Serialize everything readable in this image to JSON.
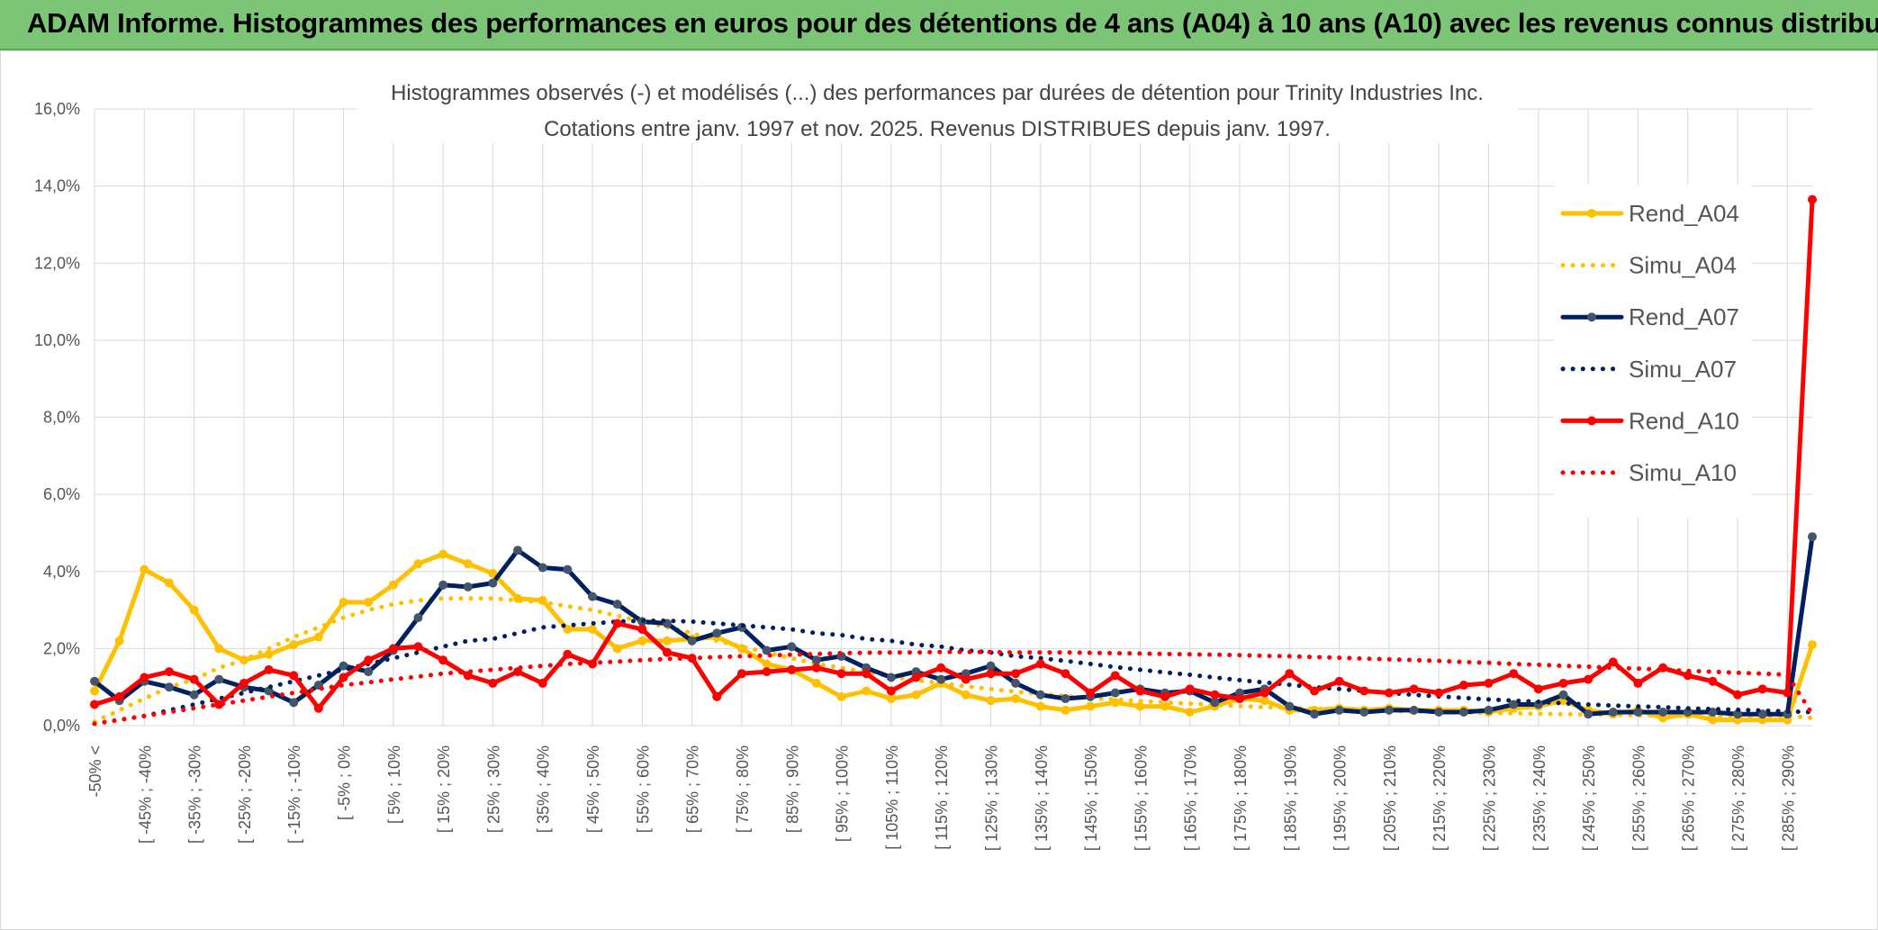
{
  "header": {
    "title": "ADAM Informe. Histogrammes des performances en euros pour des détentions de 4 ans (A04) à 10 ans (A10) avec les revenus connus distribués"
  },
  "colors": {
    "header_bg": "#7cc576",
    "A04": "#ffc000",
    "A07": "#002060",
    "A10": "#ff0000",
    "grid": "#d9d9d9"
  },
  "chart_data": {
    "type": "line",
    "title": "Histogrammes observés (-) et modélisés (...) des performances par durées de détention pour Trinity Industries Inc.",
    "subtitle": "Cotations entre janv. 1997 et nov. 2025. Revenus DISTRIBUES depuis janv. 1997.",
    "ylim": [
      0,
      0.16
    ],
    "yticks": [
      "0,0%",
      "2,0%",
      "4,0%",
      "6,0%",
      "8,0%",
      "10,0%",
      "12,0%",
      "14,0%",
      "16,0%"
    ],
    "grid": true,
    "legend_position": "top-right",
    "x_labels": [
      "-50% <",
      "[ -45% ; -40%",
      "[ -35% ; -30%",
      "[ -25% ; -20%",
      "[ -15% ; -10%",
      "[ -5% ; 0%",
      "[ 5% ; 10%",
      "[ 15% ; 20%",
      "[ 25% ; 30%",
      "[ 35% ; 40%",
      "[ 45% ; 50%",
      "[ 55% ; 60%",
      "[ 65% ; 70%",
      "[ 75% ; 80%",
      "[ 85% ; 90%",
      "[ 95% ; 100%",
      "[ 105% ; 110%",
      "[ 115% ; 120%",
      "[ 125% ; 130%",
      "[ 135% ; 140%",
      "[ 145% ; 150%",
      "[ 155% ; 160%",
      "[ 165% ; 170%",
      "[ 175% ; 180%",
      "[ 185% ; 190%",
      "[ 195% ; 200%",
      "[ 205% ; 210%",
      "[ 215% ; 220%",
      "[ 225% ; 230%",
      "[ 235% ; 240%",
      "[ 245% ; 250%",
      "[ 255% ; 260%",
      "[ 265% ; 270%",
      "[ 275% ; 280%",
      "[ 285% ; 290%"
    ],
    "series": [
      {
        "name": "Rend_A04",
        "style": "solid",
        "color": "#ffc000",
        "values": [
          0.009,
          0.022,
          0.0405,
          0.037,
          0.03,
          0.02,
          0.017,
          0.0185,
          0.021,
          0.023,
          0.032,
          0.032,
          0.0365,
          0.042,
          0.0445,
          0.042,
          0.0395,
          0.033,
          0.0325,
          0.025,
          0.025,
          0.02,
          0.022,
          0.022,
          0.0225,
          0.023,
          0.02,
          0.016,
          0.0145,
          0.011,
          0.0075,
          0.009,
          0.007,
          0.008,
          0.011,
          0.008,
          0.0065,
          0.007,
          0.005,
          0.004,
          0.005,
          0.006,
          0.005,
          0.005,
          0.0035,
          0.005,
          0.007,
          0.0065,
          0.004,
          0.004,
          0.0045,
          0.004,
          0.0045,
          0.004,
          0.004,
          0.004,
          0.0035,
          0.0045,
          0.005,
          0.0065,
          0.004,
          0.003,
          0.004,
          0.002,
          0.003,
          0.0015,
          0.0015,
          0.0015,
          0.0015,
          0.021
        ]
      },
      {
        "name": "Simu_A04",
        "style": "dotted",
        "color": "#ffc000",
        "values": [
          0.001,
          0.004,
          0.007,
          0.01,
          0.012,
          0.015,
          0.017,
          0.02,
          0.023,
          0.0255,
          0.028,
          0.03,
          0.0315,
          0.0325,
          0.033,
          0.033,
          0.033,
          0.0325,
          0.032,
          0.031,
          0.03,
          0.0285,
          0.027,
          0.0255,
          0.024,
          0.022,
          0.0205,
          0.019,
          0.0175,
          0.016,
          0.015,
          0.0138,
          0.0128,
          0.0118,
          0.011,
          0.0102,
          0.0095,
          0.0088,
          0.0082,
          0.0077,
          0.0072,
          0.0068,
          0.0064,
          0.006,
          0.0057,
          0.0054,
          0.0051,
          0.0048,
          0.0046,
          0.0044,
          0.0042,
          0.004,
          0.0038,
          0.0036,
          0.0035,
          0.0034,
          0.0033,
          0.0032,
          0.0031,
          0.003,
          0.0029,
          0.0028,
          0.0027,
          0.0026,
          0.0025,
          0.0025,
          0.0025,
          0.0025,
          0.0025,
          0.002
        ]
      },
      {
        "name": "Rend_A07",
        "style": "solid",
        "color": "#002060",
        "values": [
          0.0115,
          0.0065,
          0.0115,
          0.01,
          0.008,
          0.012,
          0.01,
          0.009,
          0.006,
          0.0105,
          0.0155,
          0.014,
          0.0195,
          0.028,
          0.0365,
          0.036,
          0.037,
          0.0455,
          0.041,
          0.0405,
          0.0335,
          0.0315,
          0.027,
          0.0265,
          0.022,
          0.024,
          0.0255,
          0.0195,
          0.0205,
          0.017,
          0.018,
          0.015,
          0.0125,
          0.014,
          0.012,
          0.0135,
          0.0155,
          0.011,
          0.008,
          0.007,
          0.0075,
          0.0085,
          0.0095,
          0.0085,
          0.009,
          0.006,
          0.0085,
          0.0095,
          0.005,
          0.003,
          0.004,
          0.0035,
          0.004,
          0.004,
          0.0035,
          0.0035,
          0.004,
          0.0055,
          0.0055,
          0.008,
          0.003,
          0.0035,
          0.0035,
          0.0035,
          0.0035,
          0.0035,
          0.003,
          0.003,
          0.003,
          0.049
        ]
      },
      {
        "name": "Simu_A07",
        "style": "dotted",
        "color": "#002060",
        "values": [
          0.0005,
          0.0015,
          0.0025,
          0.004,
          0.0055,
          0.007,
          0.0085,
          0.01,
          0.0115,
          0.013,
          0.0145,
          0.016,
          0.0175,
          0.019,
          0.0205,
          0.022,
          0.0225,
          0.024,
          0.0255,
          0.026,
          0.0265,
          0.027,
          0.0272,
          0.0272,
          0.027,
          0.0265,
          0.026,
          0.0255,
          0.025,
          0.024,
          0.0235,
          0.0225,
          0.022,
          0.021,
          0.0205,
          0.0195,
          0.019,
          0.018,
          0.0175,
          0.0168,
          0.016,
          0.0152,
          0.0145,
          0.0138,
          0.0132,
          0.0125,
          0.0118,
          0.0112,
          0.0106,
          0.01,
          0.0095,
          0.009,
          0.0085,
          0.008,
          0.0076,
          0.0072,
          0.0068,
          0.0065,
          0.0062,
          0.0058,
          0.0055,
          0.0052,
          0.005,
          0.0048,
          0.0045,
          0.0043,
          0.0041,
          0.0039,
          0.0037,
          0.0035
        ]
      },
      {
        "name": "Rend_A10",
        "style": "solid",
        "color": "#ff0000",
        "values": [
          0.0055,
          0.0075,
          0.0125,
          0.014,
          0.012,
          0.0055,
          0.011,
          0.0145,
          0.013,
          0.0045,
          0.0125,
          0.017,
          0.02,
          0.0205,
          0.017,
          0.013,
          0.011,
          0.014,
          0.011,
          0.0185,
          0.016,
          0.0265,
          0.025,
          0.019,
          0.0175,
          0.0075,
          0.0135,
          0.014,
          0.0145,
          0.015,
          0.0135,
          0.0135,
          0.009,
          0.0125,
          0.015,
          0.012,
          0.0135,
          0.0135,
          0.016,
          0.0135,
          0.0085,
          0.013,
          0.009,
          0.0075,
          0.0095,
          0.008,
          0.007,
          0.0085,
          0.0135,
          0.009,
          0.0115,
          0.009,
          0.0085,
          0.0095,
          0.0085,
          0.0105,
          0.011,
          0.0135,
          0.0095,
          0.011,
          0.012,
          0.0165,
          0.011,
          0.015,
          0.013,
          0.0115,
          0.008,
          0.0095,
          0.0085,
          0.1365
        ]
      },
      {
        "name": "Simu_A10",
        "style": "dotted",
        "color": "#ff0000",
        "values": [
          0.0005,
          0.0015,
          0.0025,
          0.0035,
          0.0045,
          0.0055,
          0.0065,
          0.0075,
          0.0085,
          0.0095,
          0.0105,
          0.0112,
          0.012,
          0.0127,
          0.0135,
          0.014,
          0.0145,
          0.015,
          0.0155,
          0.016,
          0.0163,
          0.0166,
          0.017,
          0.0173,
          0.0175,
          0.0178,
          0.018,
          0.0182,
          0.0184,
          0.0186,
          0.0188,
          0.0189,
          0.019,
          0.019,
          0.0191,
          0.0191,
          0.0191,
          0.019,
          0.019,
          0.019,
          0.0189,
          0.0188,
          0.0187,
          0.0186,
          0.0185,
          0.0184,
          0.0183,
          0.0181,
          0.018,
          0.0178,
          0.0176,
          0.0174,
          0.0172,
          0.017,
          0.0168,
          0.0165,
          0.0163,
          0.016,
          0.0158,
          0.0155,
          0.0153,
          0.015,
          0.0148,
          0.0145,
          0.0142,
          0.014,
          0.0137,
          0.0135,
          0.0132,
          0.003
        ]
      }
    ]
  }
}
